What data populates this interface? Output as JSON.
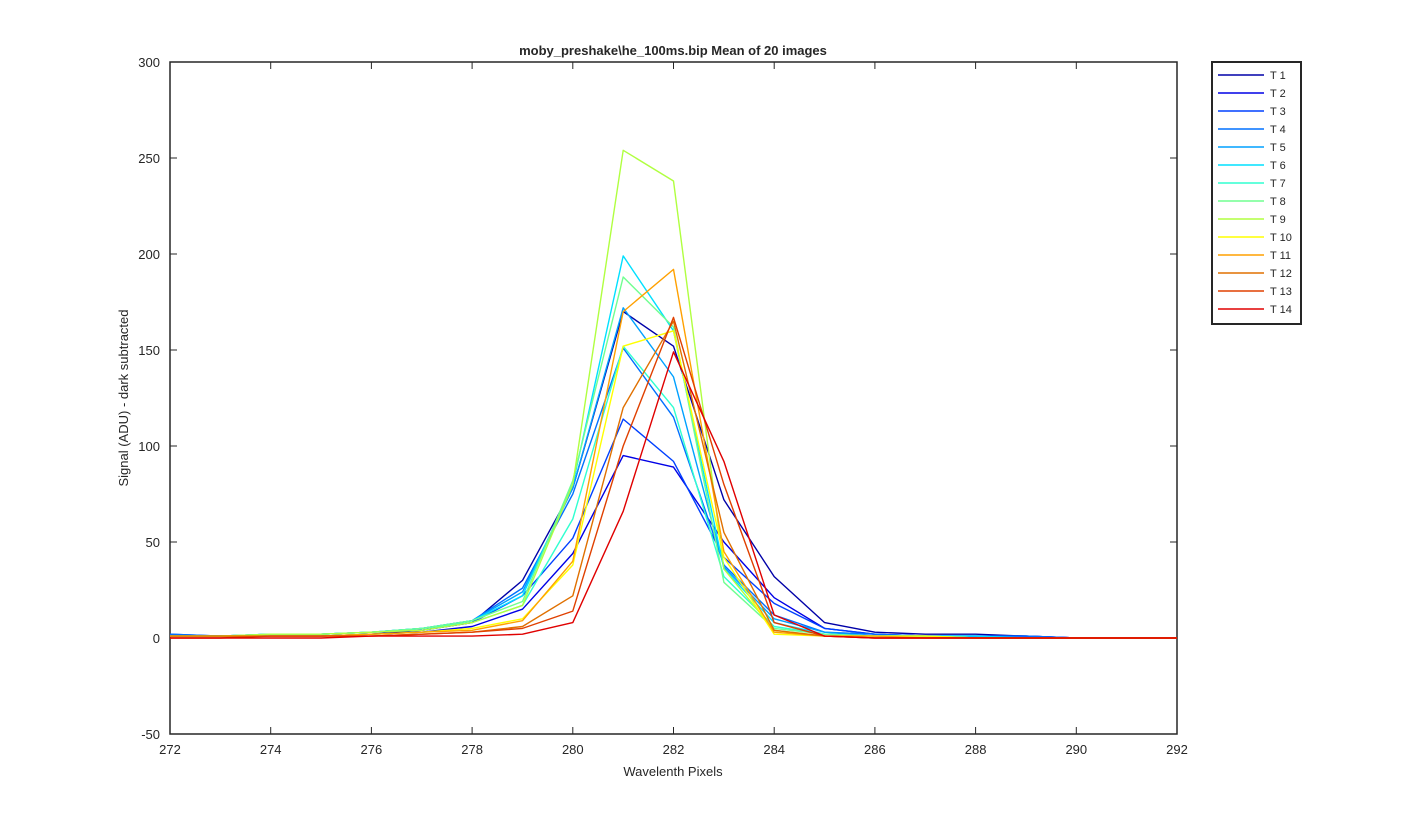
{
  "chart_data": {
    "type": "line",
    "title": "moby_preshake\\he_100ms.bip  Mean of 20 images",
    "xlabel": "Wavelenth Pixels",
    "ylabel": "Signal (ADU) - dark subtracted",
    "xlim": [
      272,
      292
    ],
    "ylim": [
      -50,
      300
    ],
    "xticks": [
      "272",
      "274",
      "276",
      "278",
      "280",
      "282",
      "284",
      "286",
      "288",
      "290",
      "292"
    ],
    "yticks": [
      "-50",
      "0",
      "50",
      "100",
      "150",
      "200",
      "250",
      "300"
    ],
    "grid": false,
    "legend_position": "outside-right",
    "x": [
      272,
      273,
      274,
      275,
      276,
      277,
      278,
      279,
      280,
      281,
      282,
      283,
      284,
      285,
      286,
      287,
      288,
      289,
      290,
      291,
      292
    ],
    "series": [
      {
        "name": "T 1",
        "color": "#0000a8",
        "values": [
          1,
          1,
          1,
          1,
          2,
          4,
          8,
          30,
          78,
          170,
          152,
          72,
          32,
          8,
          3,
          2,
          2,
          1,
          0,
          0,
          0
        ]
      },
      {
        "name": "T 2",
        "color": "#0000e6",
        "values": [
          1,
          1,
          1,
          1,
          2,
          3,
          6,
          15,
          44,
          95,
          89,
          50,
          21,
          5,
          2,
          1,
          1,
          1,
          0,
          0,
          0
        ]
      },
      {
        "name": "T 3",
        "color": "#0040ff",
        "values": [
          2,
          1,
          2,
          2,
          3,
          4,
          8,
          22,
          52,
          114,
          92,
          42,
          18,
          5,
          2,
          1,
          1,
          1,
          0,
          0,
          0
        ]
      },
      {
        "name": "T 4",
        "color": "#0070ff",
        "values": [
          2,
          1,
          2,
          2,
          3,
          5,
          9,
          26,
          75,
          151,
          115,
          38,
          12,
          3,
          2,
          1,
          1,
          1,
          0,
          0,
          0
        ]
      },
      {
        "name": "T 5",
        "color": "#00a0ff",
        "values": [
          1,
          1,
          2,
          2,
          3,
          5,
          9,
          24,
          78,
          172,
          136,
          37,
          10,
          3,
          1,
          1,
          1,
          0,
          0,
          0,
          0
        ]
      },
      {
        "name": "T 6",
        "color": "#00e0ff",
        "values": [
          1,
          1,
          2,
          2,
          3,
          5,
          9,
          22,
          80,
          199,
          160,
          36,
          8,
          2,
          1,
          1,
          1,
          0,
          0,
          0,
          0
        ]
      },
      {
        "name": "T 7",
        "color": "#30ffd0",
        "values": [
          1,
          1,
          2,
          2,
          3,
          5,
          8,
          17,
          62,
          152,
          120,
          32,
          6,
          2,
          1,
          1,
          0,
          0,
          0,
          0,
          0
        ]
      },
      {
        "name": "T 8",
        "color": "#70ff90",
        "values": [
          1,
          1,
          2,
          2,
          3,
          5,
          9,
          19,
          82,
          188,
          162,
          29,
          5,
          2,
          1,
          1,
          0,
          0,
          0,
          0,
          0
        ]
      },
      {
        "name": "T 9",
        "color": "#b0ff40",
        "values": [
          1,
          1,
          2,
          2,
          3,
          4,
          8,
          17,
          80,
          254,
          238,
          36,
          4,
          1,
          1,
          1,
          0,
          0,
          0,
          0,
          0
        ]
      },
      {
        "name": "T 10",
        "color": "#ffff00",
        "values": [
          1,
          1,
          1,
          1,
          2,
          3,
          5,
          10,
          38,
          152,
          160,
          42,
          2,
          1,
          1,
          1,
          0,
          0,
          0,
          0,
          0
        ]
      },
      {
        "name": "T 11",
        "color": "#ffa000",
        "values": [
          1,
          1,
          1,
          1,
          2,
          3,
          4,
          9,
          40,
          170,
          192,
          45,
          3,
          1,
          1,
          0,
          0,
          0,
          0,
          0,
          0
        ]
      },
      {
        "name": "T 12",
        "color": "#e07000",
        "values": [
          1,
          1,
          1,
          1,
          1,
          2,
          3,
          6,
          22,
          120,
          165,
          55,
          4,
          1,
          0,
          0,
          0,
          0,
          0,
          0,
          0
        ]
      },
      {
        "name": "T 13",
        "color": "#e04000",
        "values": [
          0,
          0,
          1,
          1,
          1,
          2,
          3,
          5,
          14,
          100,
          167,
          80,
          8,
          1,
          0,
          0,
          0,
          0,
          0,
          0,
          0
        ]
      },
      {
        "name": "T 14",
        "color": "#e00000",
        "values": [
          0,
          0,
          0,
          0,
          1,
          1,
          1,
          2,
          8,
          66,
          149,
          92,
          12,
          1,
          0,
          0,
          0,
          0,
          0,
          0,
          0
        ]
      }
    ]
  }
}
